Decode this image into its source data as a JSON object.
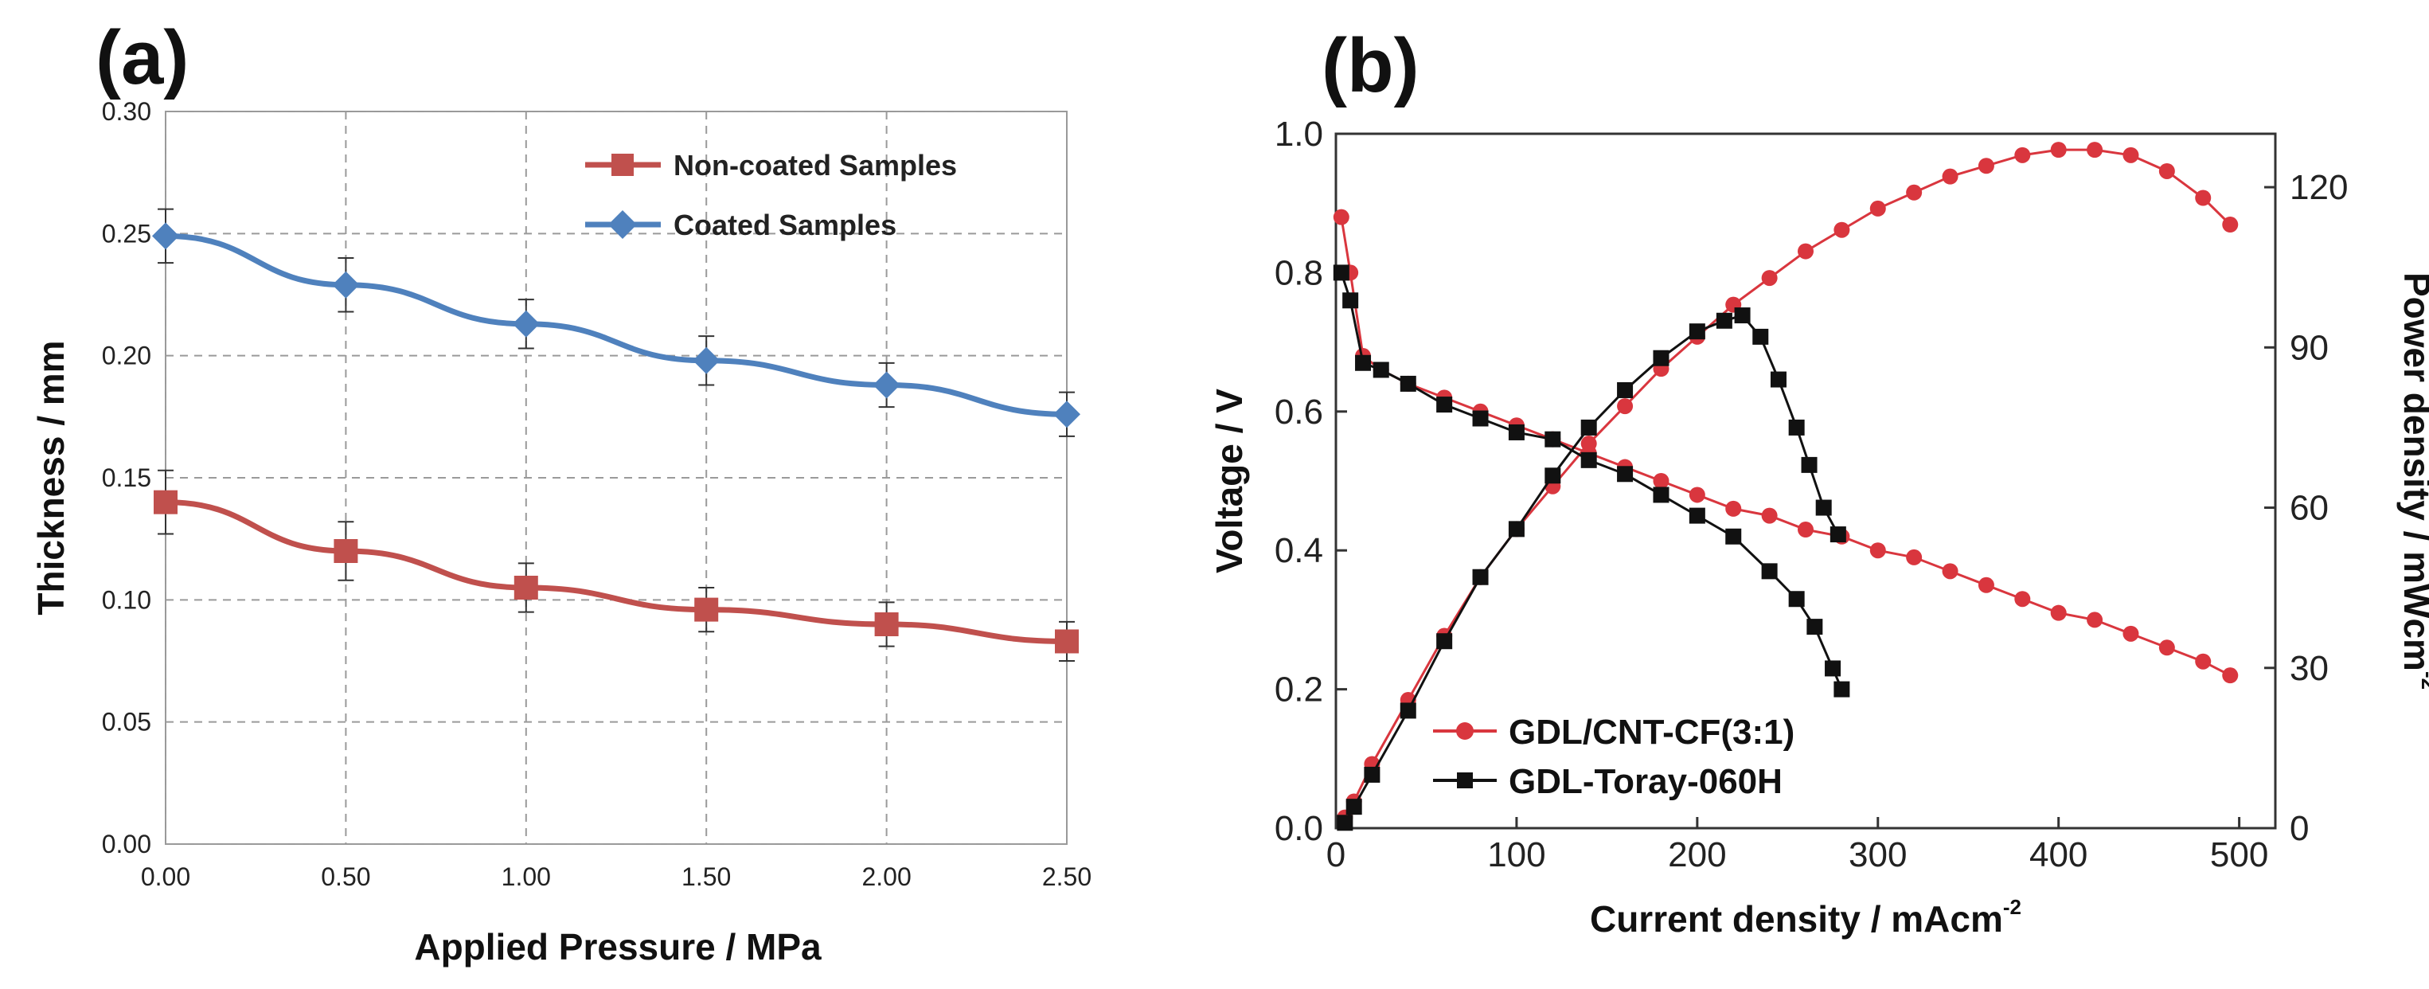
{
  "chart_data": [
    {
      "panel_label": "(a)",
      "type": "line",
      "xlabel": "Applied Pressure / MPa",
      "ylabel": "Thickness / mm",
      "xlim": [
        0,
        2.5
      ],
      "ylim": [
        0,
        0.3
      ],
      "x_ticks": [
        "0.00",
        "0.50",
        "1.00",
        "1.50",
        "2.00",
        "2.50"
      ],
      "y_ticks": [
        "0.00",
        "0.05",
        "0.10",
        "0.15",
        "0.20",
        "0.25",
        "0.30"
      ],
      "grid": true,
      "legend_position": "top-right",
      "x": [
        0,
        0.5,
        1.0,
        1.5,
        2.0,
        2.5
      ],
      "series": [
        {
          "name": "Non-coated Samples",
          "marker": "square",
          "color": "#c0504d",
          "values": [
            0.14,
            0.12,
            0.105,
            0.096,
            0.09,
            0.083
          ],
          "error": [
            0.013,
            0.012,
            0.01,
            0.009,
            0.009,
            0.008
          ]
        },
        {
          "name": "Coated Samples",
          "marker": "diamond",
          "color": "#4f81bd",
          "values": [
            0.249,
            0.229,
            0.213,
            0.198,
            0.188,
            0.176
          ],
          "error": [
            0.011,
            0.011,
            0.01,
            0.01,
            0.009,
            0.009
          ]
        }
      ]
    },
    {
      "panel_label": "(b)",
      "type": "line",
      "xlabel": "Current density / mAcm",
      "xlabel_sup": "-2",
      "ylabel": "Voltage / V",
      "y2label": "Power density / mWcm",
      "y2label_sup": "-2",
      "xlim": [
        0,
        520
      ],
      "ylim": [
        0,
        1.0
      ],
      "y2lim": [
        0,
        130
      ],
      "x_ticks": [
        "0",
        "100",
        "200",
        "300",
        "400",
        "500"
      ],
      "y_ticks": [
        "0.0",
        "0.2",
        "0.4",
        "0.6",
        "0.8",
        "1.0"
      ],
      "y2_ticks": [
        "0",
        "30",
        "60",
        "90",
        "120"
      ],
      "grid": false,
      "legend_position": "bottom-left",
      "series": [
        {
          "name": "GDL/CNT-CF(3:1)",
          "axis": "left",
          "kind": "voltage",
          "marker": "circle",
          "color": "#d9363e",
          "x": [
            3,
            8,
            15,
            25,
            40,
            60,
            80,
            100,
            120,
            140,
            160,
            180,
            200,
            220,
            240,
            260,
            280,
            300,
            320,
            340,
            360,
            380,
            400,
            420,
            440,
            460,
            480,
            495
          ],
          "values": [
            0.88,
            0.8,
            0.68,
            0.66,
            0.64,
            0.62,
            0.6,
            0.58,
            0.56,
            0.54,
            0.52,
            0.5,
            0.48,
            0.46,
            0.45,
            0.43,
            0.42,
            0.4,
            0.39,
            0.37,
            0.35,
            0.33,
            0.31,
            0.3,
            0.28,
            0.26,
            0.24,
            0.22
          ]
        },
        {
          "name": "GDL/CNT-CF(3:1)",
          "axis": "right",
          "kind": "power",
          "marker": "circle",
          "color": "#d9363e",
          "x": [
            5,
            10,
            20,
            40,
            60,
            80,
            100,
            120,
            140,
            160,
            180,
            200,
            220,
            240,
            260,
            280,
            300,
            320,
            340,
            360,
            380,
            400,
            420,
            440,
            460,
            480,
            495
          ],
          "values": [
            2,
            5,
            12,
            24,
            36,
            47,
            56,
            64,
            72,
            79,
            86,
            92,
            98,
            103,
            108,
            112,
            116,
            119,
            122,
            124,
            126,
            127,
            127,
            126,
            123,
            118,
            113
          ]
        },
        {
          "name": "GDL-Toray-060H",
          "axis": "left",
          "kind": "voltage",
          "marker": "square",
          "color": "#111111",
          "x": [
            3,
            8,
            15,
            25,
            40,
            60,
            80,
            100,
            120,
            140,
            160,
            180,
            200,
            220,
            240,
            255,
            265,
            275,
            280
          ],
          "values": [
            0.8,
            0.76,
            0.67,
            0.66,
            0.64,
            0.61,
            0.59,
            0.57,
            0.56,
            0.53,
            0.51,
            0.48,
            0.45,
            0.42,
            0.37,
            0.33,
            0.29,
            0.23,
            0.2
          ]
        },
        {
          "name": "GDL-Toray-060H",
          "axis": "right",
          "kind": "power",
          "marker": "square",
          "color": "#111111",
          "x": [
            5,
            10,
            20,
            40,
            60,
            80,
            100,
            120,
            140,
            160,
            180,
            200,
            215,
            225,
            235,
            245,
            255,
            262,
            270,
            278
          ],
          "values": [
            1,
            4,
            10,
            22,
            35,
            47,
            56,
            66,
            75,
            82,
            88,
            93,
            95,
            96,
            92,
            84,
            75,
            68,
            60,
            55
          ]
        }
      ]
    }
  ]
}
